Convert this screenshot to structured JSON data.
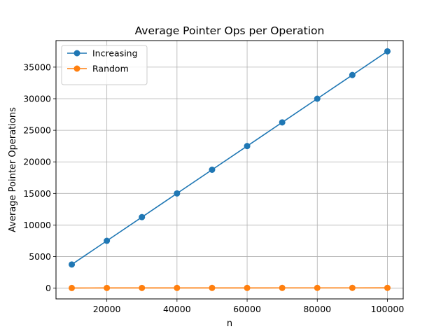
{
  "chart_data": {
    "type": "line",
    "title": "Average Pointer Ops per Operation",
    "xlabel": "n",
    "ylabel": "Average Pointer Operations",
    "x": [
      10000,
      20000,
      30000,
      40000,
      50000,
      60000,
      70000,
      80000,
      90000,
      100000
    ],
    "xlim": [
      5500,
      104500
    ],
    "ylim": [
      -1700,
      39200
    ],
    "xticks": [
      20000,
      40000,
      60000,
      80000,
      100000
    ],
    "yticks": [
      0,
      5000,
      10000,
      15000,
      20000,
      25000,
      30000,
      35000
    ],
    "grid": true,
    "legend_position": "top-left",
    "series": [
      {
        "name": "Increasing",
        "color": "#1f77b4",
        "marker": "circle",
        "values": [
          3750,
          7500,
          11250,
          15000,
          18750,
          22500,
          26250,
          30000,
          33750,
          37500
        ]
      },
      {
        "name": "Random",
        "color": "#ff7f0e",
        "marker": "circle",
        "values": [
          30,
          35,
          38,
          40,
          42,
          43,
          45,
          46,
          47,
          48
        ]
      }
    ]
  }
}
